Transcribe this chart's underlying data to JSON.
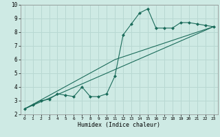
{
  "xlabel": "Humidex (Indice chaleur)",
  "background_color": "#ceeae4",
  "grid_color": "#b8d8d2",
  "line_color": "#1a6b5a",
  "xlim": [
    -0.5,
    23.5
  ],
  "ylim": [
    2,
    10
  ],
  "xticks": [
    0,
    1,
    2,
    3,
    4,
    5,
    6,
    7,
    8,
    9,
    10,
    11,
    12,
    13,
    14,
    15,
    16,
    17,
    18,
    19,
    20,
    21,
    22,
    23
  ],
  "yticks": [
    2,
    3,
    4,
    5,
    6,
    7,
    8,
    9,
    10
  ],
  "series1_x": [
    0,
    1,
    2,
    3,
    4,
    5,
    6,
    7,
    8,
    9,
    10,
    11,
    12,
    13,
    14,
    15,
    16,
    17,
    18,
    19,
    20,
    21,
    22,
    23
  ],
  "series1_y": [
    2.4,
    2.7,
    3.0,
    3.1,
    3.5,
    3.4,
    3.3,
    4.0,
    3.3,
    3.3,
    3.5,
    4.8,
    7.8,
    8.6,
    9.4,
    9.7,
    8.3,
    8.3,
    8.3,
    8.7,
    8.7,
    8.6,
    8.5,
    8.4
  ],
  "series2_x": [
    0,
    23
  ],
  "series2_y": [
    2.4,
    8.4
  ],
  "series3_x": [
    0,
    11,
    23
  ],
  "series3_y": [
    2.4,
    6.0,
    8.4
  ]
}
